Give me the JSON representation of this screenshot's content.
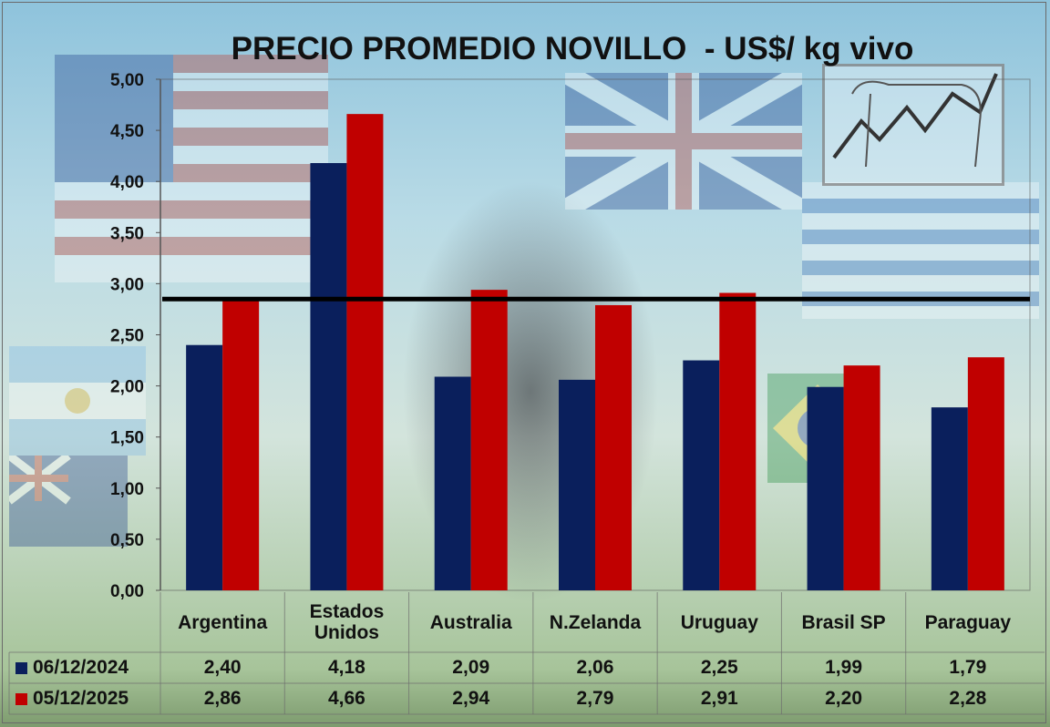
{
  "chart_data": {
    "type": "bar",
    "title": "PRECIO PROMEDIO NOVILLO  - US$/ kg vivo",
    "categories": [
      "Argentina",
      "Estados Unidos",
      "Australia",
      "N.Zelanda",
      "Uruguay",
      "Brasil SP",
      "Paraguay"
    ],
    "category_lines": [
      [
        "Argentina"
      ],
      [
        "Estados",
        "Unidos"
      ],
      [
        "Australia"
      ],
      [
        "N.Zelanda"
      ],
      [
        "Uruguay"
      ],
      [
        "Brasil SP"
      ],
      [
        "Paraguay"
      ]
    ],
    "series": [
      {
        "name": "06/12/2024",
        "color": "#0a1f5c",
        "values": [
          2.4,
          4.18,
          2.09,
          2.06,
          2.25,
          1.99,
          1.79
        ],
        "labels": [
          "2,40",
          "4,18",
          "2,09",
          "2,06",
          "2,25",
          "1,99",
          "1,79"
        ]
      },
      {
        "name": "05/12/2025",
        "color": "#c00000",
        "values": [
          2.86,
          4.66,
          2.94,
          2.79,
          2.91,
          2.2,
          2.28
        ],
        "labels": [
          "2,86",
          "4,66",
          "2,94",
          "2,79",
          "2,91",
          "2,20",
          "2,28"
        ]
      }
    ],
    "reference_line": 2.85,
    "ylim": [
      0,
      5
    ],
    "yticks": [
      "0,00",
      "0,50",
      "1,00",
      "1,50",
      "2,00",
      "2,50",
      "3,00",
      "3,50",
      "4,00",
      "4,50",
      "5,00"
    ],
    "grid": false,
    "legend": "data-table",
    "xlabel": "",
    "ylabel": ""
  }
}
